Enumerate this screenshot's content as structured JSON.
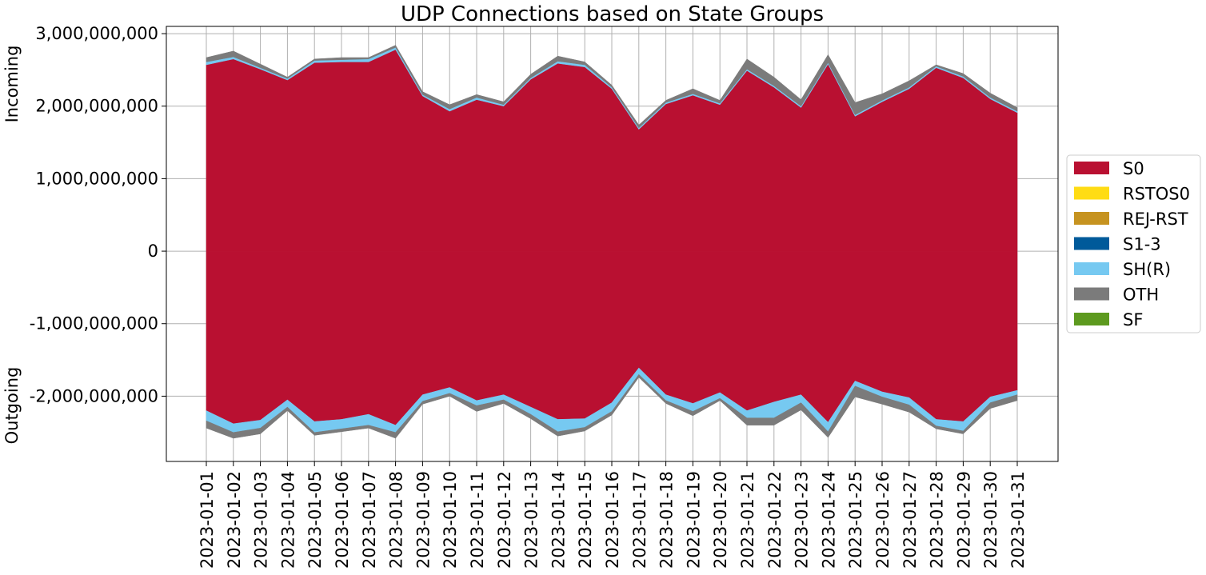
{
  "chart_data": {
    "type": "area",
    "title": "UDP Connections based on State Groups",
    "ylabel_top": "Incoming",
    "ylabel_bottom": "Outgoing",
    "xlabel": "",
    "ylim": [
      -2900000000,
      3100000000
    ],
    "yticks": [
      3000000000,
      2000000000,
      1000000000,
      0,
      -1000000000,
      -2000000000
    ],
    "ytick_labels": [
      "3,000,000,000",
      "2,000,000,000",
      "1,000,000,000",
      "0",
      "-1,000,000,000",
      "-2,000,000,000"
    ],
    "grid": true,
    "legend_position": "right",
    "categories": [
      "2023-01-01",
      "2023-01-02",
      "2023-01-03",
      "2023-01-04",
      "2023-01-05",
      "2023-01-06",
      "2023-01-07",
      "2023-01-08",
      "2023-01-09",
      "2023-01-10",
      "2023-01-11",
      "2023-01-12",
      "2023-01-13",
      "2023-01-14",
      "2023-01-15",
      "2023-01-16",
      "2023-01-17",
      "2023-01-18",
      "2023-01-19",
      "2023-01-20",
      "2023-01-21",
      "2023-01-22",
      "2023-01-23",
      "2023-01-24",
      "2023-01-25",
      "2023-01-26",
      "2023-01-27",
      "2023-01-28",
      "2023-01-29",
      "2023-01-30",
      "2023-01-31"
    ],
    "series": [
      {
        "name": "S0",
        "color": "#b91031",
        "incoming": [
          2570000000,
          2650000000,
          2510000000,
          2360000000,
          2600000000,
          2610000000,
          2610000000,
          2780000000,
          2140000000,
          1930000000,
          2090000000,
          2000000000,
          2370000000,
          2590000000,
          2540000000,
          2240000000,
          1680000000,
          2030000000,
          2150000000,
          2020000000,
          2490000000,
          2260000000,
          1980000000,
          2580000000,
          1860000000,
          2060000000,
          2240000000,
          2530000000,
          2390000000,
          2100000000,
          1910000000
        ],
        "outgoing": [
          -2200000000,
          -2380000000,
          -2330000000,
          -2050000000,
          -2350000000,
          -2320000000,
          -2250000000,
          -2400000000,
          -1980000000,
          -1880000000,
          -2060000000,
          -1980000000,
          -2150000000,
          -2320000000,
          -2310000000,
          -2090000000,
          -1610000000,
          -1980000000,
          -2100000000,
          -1950000000,
          -2200000000,
          -2080000000,
          -1980000000,
          -2360000000,
          -1790000000,
          -1940000000,
          -2020000000,
          -2320000000,
          -2350000000,
          -2010000000,
          -1920000000
        ]
      },
      {
        "name": "RSTOS0",
        "color": "#ffdc14",
        "incoming": [
          0,
          0,
          0,
          0,
          0,
          0,
          0,
          0,
          0,
          0,
          0,
          0,
          0,
          0,
          0,
          0,
          0,
          0,
          0,
          0,
          0,
          0,
          0,
          0,
          0,
          0,
          0,
          0,
          0,
          0,
          0
        ],
        "outgoing": [
          0,
          0,
          0,
          0,
          0,
          0,
          0,
          0,
          0,
          0,
          0,
          0,
          0,
          0,
          0,
          0,
          0,
          0,
          0,
          0,
          0,
          0,
          0,
          0,
          0,
          0,
          0,
          0,
          0,
          0,
          0
        ]
      },
      {
        "name": "REJ-RST",
        "color": "#c69320",
        "incoming": [
          0,
          0,
          0,
          0,
          0,
          0,
          0,
          0,
          0,
          0,
          0,
          0,
          0,
          0,
          0,
          0,
          0,
          0,
          0,
          0,
          0,
          0,
          0,
          0,
          0,
          0,
          0,
          0,
          0,
          0,
          0
        ],
        "outgoing": [
          0,
          0,
          0,
          0,
          0,
          0,
          0,
          0,
          0,
          0,
          0,
          0,
          0,
          0,
          0,
          0,
          0,
          0,
          0,
          0,
          0,
          0,
          0,
          0,
          0,
          0,
          0,
          0,
          0,
          0,
          0
        ]
      },
      {
        "name": "S1-3",
        "color": "#005a9a",
        "incoming": [
          0,
          0,
          0,
          0,
          0,
          0,
          0,
          0,
          0,
          0,
          0,
          0,
          0,
          0,
          0,
          0,
          0,
          0,
          0,
          0,
          0,
          0,
          0,
          0,
          0,
          0,
          0,
          0,
          0,
          0,
          0
        ],
        "outgoing": [
          0,
          0,
          0,
          0,
          0,
          0,
          0,
          0,
          0,
          0,
          0,
          0,
          0,
          0,
          0,
          0,
          0,
          0,
          0,
          0,
          0,
          0,
          0,
          0,
          0,
          0,
          0,
          0,
          0,
          0,
          0
        ]
      },
      {
        "name": "SH(R)",
        "color": "#76c9f1",
        "incoming": [
          40000000,
          30000000,
          20000000,
          20000000,
          30000000,
          30000000,
          40000000,
          30000000,
          20000000,
          30000000,
          30000000,
          20000000,
          20000000,
          30000000,
          30000000,
          20000000,
          20000000,
          20000000,
          20000000,
          20000000,
          20000000,
          20000000,
          20000000,
          20000000,
          20000000,
          20000000,
          20000000,
          20000000,
          20000000,
          20000000,
          20000000
        ],
        "outgoing": [
          -140000000,
          -120000000,
          -110000000,
          -100000000,
          -150000000,
          -130000000,
          -150000000,
          -100000000,
          -90000000,
          -80000000,
          -70000000,
          -70000000,
          -100000000,
          -170000000,
          -120000000,
          -120000000,
          -90000000,
          -80000000,
          -110000000,
          -80000000,
          -100000000,
          -220000000,
          -110000000,
          -130000000,
          -70000000,
          -70000000,
          -100000000,
          -90000000,
          -130000000,
          -80000000,
          -60000000
        ]
      },
      {
        "name": "OTH",
        "color": "#7b7b7b",
        "incoming": [
          60000000,
          80000000,
          50000000,
          20000000,
          20000000,
          30000000,
          20000000,
          30000000,
          40000000,
          60000000,
          40000000,
          40000000,
          50000000,
          70000000,
          40000000,
          30000000,
          40000000,
          30000000,
          70000000,
          40000000,
          140000000,
          120000000,
          90000000,
          110000000,
          170000000,
          90000000,
          90000000,
          20000000,
          40000000,
          60000000,
          50000000
        ]
      },
      {
        "name": "SF",
        "color": "#5d9a1f",
        "incoming": [
          0,
          0,
          0,
          0,
          0,
          0,
          0,
          0,
          0,
          0,
          0,
          0,
          0,
          0,
          0,
          0,
          0,
          0,
          0,
          0,
          0,
          0,
          0,
          0,
          0,
          0,
          0,
          0,
          0,
          0,
          0
        ],
        "outgoing": [
          0,
          0,
          0,
          0,
          0,
          0,
          0,
          0,
          0,
          0,
          0,
          0,
          0,
          0,
          0,
          0,
          0,
          0,
          0,
          0,
          0,
          0,
          0,
          0,
          0,
          0,
          0,
          0,
          0,
          0,
          0
        ]
      }
    ],
    "oth_outgoing": [
      -100000000,
      -80000000,
      -80000000,
      -50000000,
      -40000000,
      -40000000,
      -40000000,
      -80000000,
      -40000000,
      -40000000,
      -80000000,
      -50000000,
      -60000000,
      -60000000,
      -50000000,
      -50000000,
      -40000000,
      -40000000,
      -60000000,
      -30000000,
      -100000000,
      -100000000,
      -100000000,
      -80000000,
      -150000000,
      -100000000,
      -100000000,
      -40000000,
      -40000000,
      -80000000,
      -80000000
    ]
  }
}
